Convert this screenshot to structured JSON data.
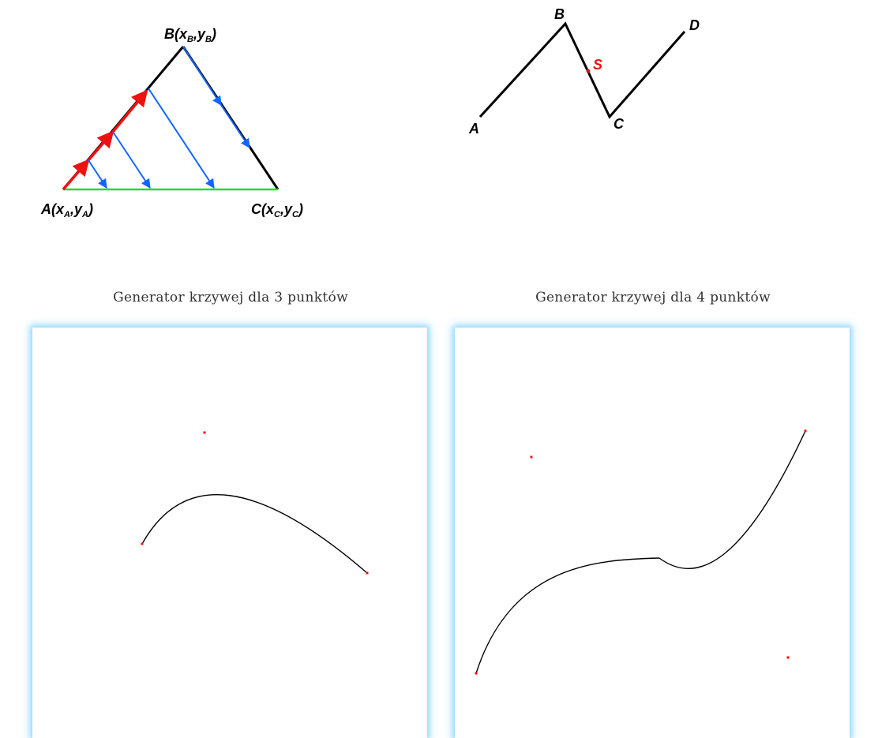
{
  "triangle_figure": {
    "point_a_label": "A(x",
    "point_a_sub1": "A",
    "point_a_mid": ",y",
    "point_a_sub2": "A",
    "point_a_end": ")",
    "point_b_label": "B(x",
    "point_b_sub1": "B",
    "point_b_mid": ",y",
    "point_b_sub2": "B",
    "point_b_end": ")",
    "point_c_label": "C(x",
    "point_c_sub1": "C",
    "point_c_mid": ",y",
    "point_c_sub2": "C",
    "point_c_end": ")",
    "colors": {
      "sides": "#000000",
      "base": "#22dd22",
      "red_arrows": "#ee1111",
      "blue_arrows": "#1166ff"
    }
  },
  "zigzag_figure": {
    "labels": {
      "a": "A",
      "b": "B",
      "c": "C",
      "d": "D",
      "s": "S"
    },
    "colors": {
      "line": "#000000",
      "s_point": "#ee1111"
    }
  },
  "generators": [
    {
      "caption": "Generator krzywej dla 3 punktów"
    },
    {
      "caption": "Generator krzywej dla 4 punktów"
    }
  ],
  "colors": {
    "canvas_glow": "#8fd8ff",
    "control_point": "#ee1111",
    "curve": "#000000"
  }
}
